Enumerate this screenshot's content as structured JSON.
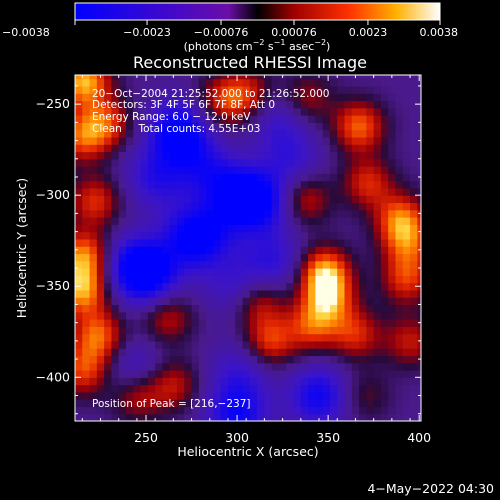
{
  "chart_data": {
    "type": "heatmap",
    "title": "Reconstructed RHESSI Image",
    "xlabel": "Heliocentric X (arcsec)",
    "ylabel": "Heliocentric Y (arcsec)",
    "xlim": [
      211,
      401
    ],
    "ylim": [
      -424,
      -234
    ],
    "x_ticks": [
      {
        "value": 250,
        "label": "250"
      },
      {
        "value": 300,
        "label": "300"
      },
      {
        "value": 350,
        "label": "350"
      },
      {
        "value": 400,
        "label": "400"
      }
    ],
    "y_ticks": [
      {
        "value": -250,
        "label": "−250"
      },
      {
        "value": -300,
        "label": "−300"
      },
      {
        "value": -350,
        "label": "−350"
      },
      {
        "value": -400,
        "label": "−400"
      }
    ],
    "colorbar": {
      "range": [
        -0.0038,
        0.0038
      ],
      "ticks": [
        {
          "value": -0.0038,
          "label": "−0.0038"
        },
        {
          "value": -0.0023,
          "label": "−0.0023"
        },
        {
          "value": -0.00076,
          "label": "−0.00076"
        },
        {
          "value": 0.00076,
          "label": "0.00076"
        },
        {
          "value": 0.0023,
          "label": "0.0023"
        },
        {
          "value": 0.0038,
          "label": "0.0038"
        }
      ],
      "unit_main": "(photons cm",
      "unit_sup1": "−2",
      "unit_mid": " s",
      "unit_sup2": "−1",
      "unit_mid2": " asec",
      "unit_sup3": "−2",
      "unit_end": ")"
    },
    "annotations": [
      "20−Oct−2004 21:25:52.000 to 21:26:52.000",
      "Detectors: 3F 4F 5F 6F 7F 8F, Att 0",
      "Energy Range: 6.0 − 12.0 keV",
      "Clean     Total counts: 4.55E+03"
    ],
    "peak_label": "Position of Peak = [216,−237]",
    "hot_regions": [
      {
        "x": 216,
        "y": -237,
        "v": 0.0038
      },
      {
        "x": 215,
        "y": -268,
        "v": 0.0026
      },
      {
        "x": 228,
        "y": -260,
        "v": 0.0024
      },
      {
        "x": 222,
        "y": -303,
        "v": 0.0024
      },
      {
        "x": 216,
        "y": -333,
        "v": 0.0033
      },
      {
        "x": 215,
        "y": -352,
        "v": 0.0035
      },
      {
        "x": 224,
        "y": -377,
        "v": 0.003
      },
      {
        "x": 216,
        "y": -396,
        "v": 0.0026
      },
      {
        "x": 292,
        "y": -248,
        "v": 0.0022
      },
      {
        "x": 306,
        "y": -244,
        "v": 0.0021
      },
      {
        "x": 338,
        "y": -247,
        "v": 0.0018
      },
      {
        "x": 367,
        "y": -262,
        "v": 0.003
      },
      {
        "x": 372,
        "y": -293,
        "v": 0.0023
      },
      {
        "x": 337,
        "y": -302,
        "v": 0.0022
      },
      {
        "x": 390,
        "y": -313,
        "v": 0.003
      },
      {
        "x": 394,
        "y": -327,
        "v": 0.0022
      },
      {
        "x": 348,
        "y": -342,
        "v": 0.0036
      },
      {
        "x": 350,
        "y": -357,
        "v": 0.003
      },
      {
        "x": 393,
        "y": -346,
        "v": 0.0024
      },
      {
        "x": 312,
        "y": -358,
        "v": 0.0022
      },
      {
        "x": 318,
        "y": -380,
        "v": 0.0026
      },
      {
        "x": 341,
        "y": -372,
        "v": 0.0024
      },
      {
        "x": 365,
        "y": -376,
        "v": 0.0023
      },
      {
        "x": 395,
        "y": -380,
        "v": 0.002
      },
      {
        "x": 262,
        "y": -367,
        "v": 0.002
      },
      {
        "x": 245,
        "y": -410,
        "v": 0.002
      },
      {
        "x": 265,
        "y": -404,
        "v": 0.002
      },
      {
        "x": 289,
        "y": -331,
        "v": 0.0012
      },
      {
        "x": 370,
        "y": -410,
        "v": 0.0012
      }
    ],
    "cold_regions": [
      {
        "x": 268,
        "y": -265,
        "v": -0.0035
      },
      {
        "x": 255,
        "y": -290,
        "v": -0.002
      },
      {
        "x": 282,
        "y": -285,
        "v": -0.0018
      },
      {
        "x": 300,
        "y": -300,
        "v": -0.003
      },
      {
        "x": 315,
        "y": -304,
        "v": -0.0025
      },
      {
        "x": 285,
        "y": -327,
        "v": -0.003
      },
      {
        "x": 273,
        "y": -320,
        "v": -0.002
      },
      {
        "x": 243,
        "y": -338,
        "v": -0.0025
      },
      {
        "x": 252,
        "y": -344,
        "v": -0.0028
      },
      {
        "x": 320,
        "y": -336,
        "v": -0.0018
      },
      {
        "x": 300,
        "y": -350,
        "v": -0.0015
      },
      {
        "x": 243,
        "y": -395,
        "v": -0.0015
      },
      {
        "x": 300,
        "y": -420,
        "v": -0.0028
      },
      {
        "x": 345,
        "y": -410,
        "v": -0.0028
      },
      {
        "x": 323,
        "y": -258,
        "v": -0.0015
      },
      {
        "x": 330,
        "y": -280,
        "v": -0.0015
      },
      {
        "x": 302,
        "y": -396,
        "v": -0.0015
      }
    ]
  },
  "footer_timestamp": "4−May−2022 04:30"
}
